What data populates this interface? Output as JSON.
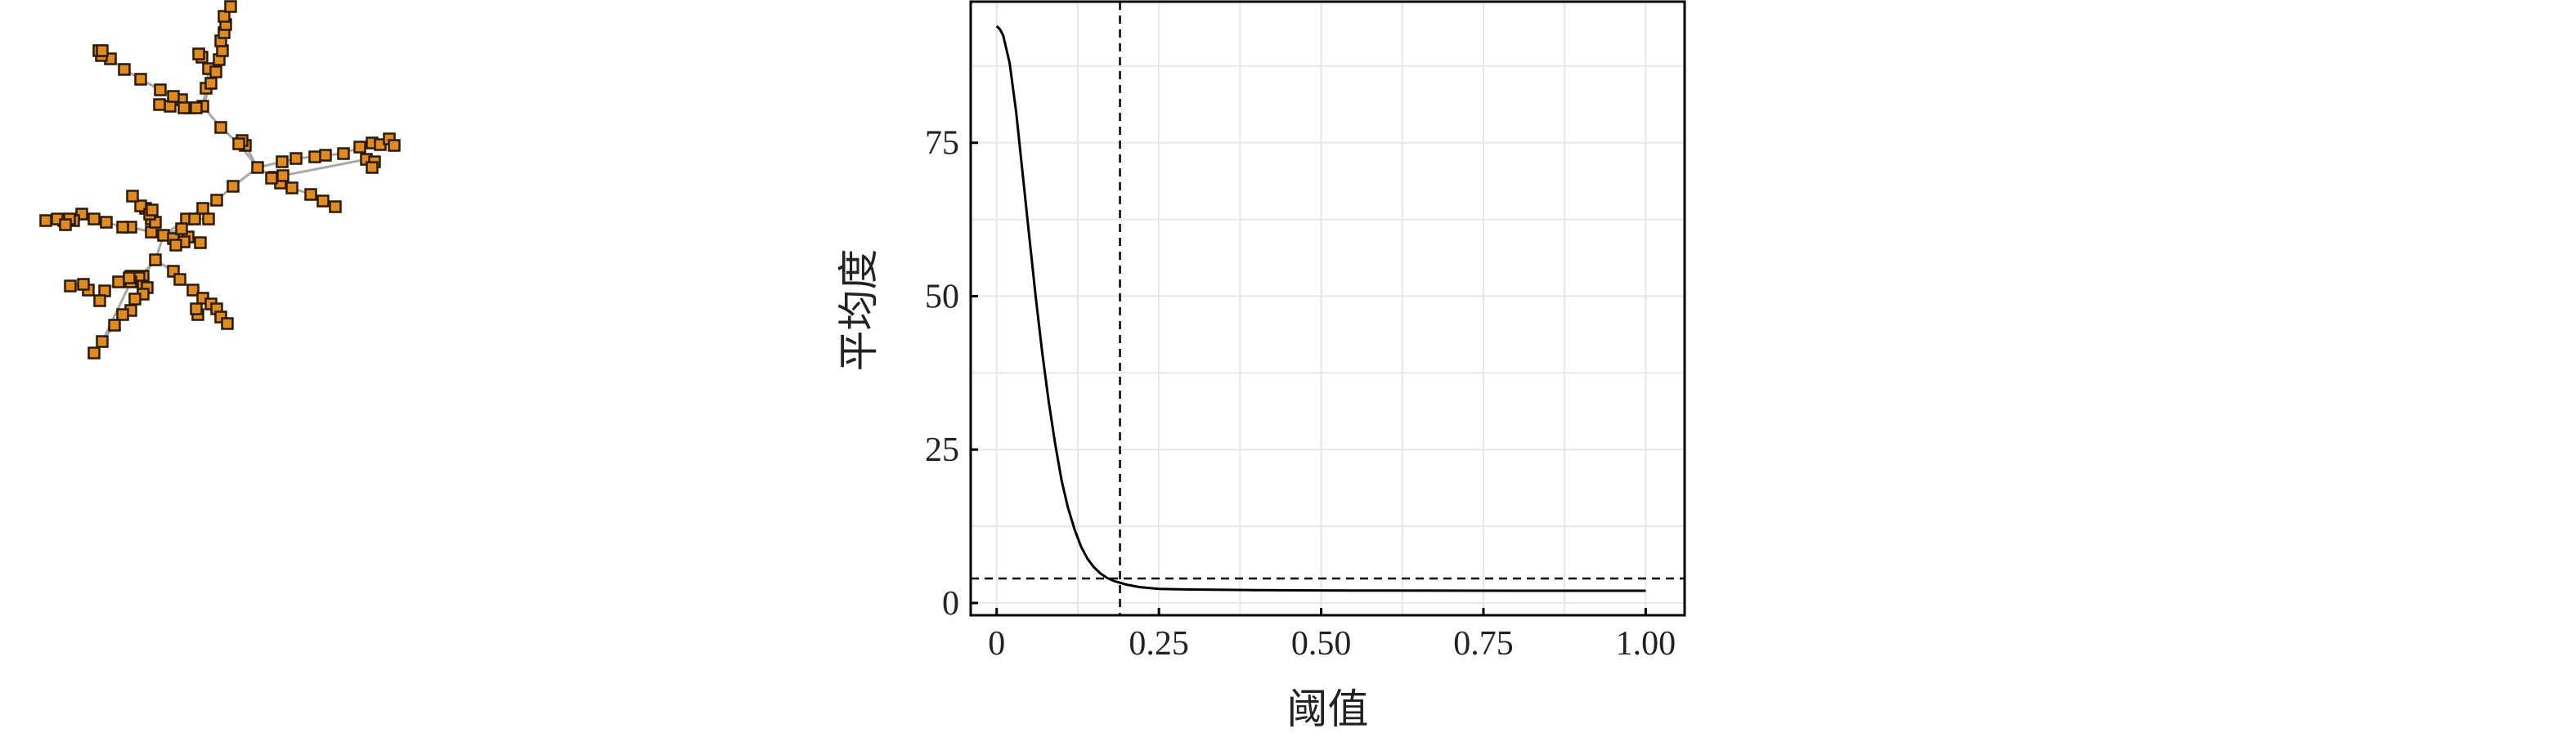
{
  "chart_data": [
    {
      "type": "network",
      "layout": "tree",
      "node_color": "#E08A22",
      "edge_color": "#A9A9A9"
    },
    {
      "type": "line",
      "xlabel": "阈值",
      "ylabel": "平均度",
      "xlim": [
        -0.04,
        1.06
      ],
      "ylim": [
        -2,
        98
      ],
      "xticks": [
        "0",
        "0.25",
        "0.50",
        "0.75",
        "1.00"
      ],
      "yticks": [
        "0",
        "25",
        "50",
        "75"
      ],
      "grid": true,
      "series": [
        {
          "x": [
            0.0,
            0.005,
            0.01,
            0.02,
            0.03,
            0.04,
            0.05,
            0.06,
            0.07,
            0.08,
            0.09,
            0.1,
            0.11,
            0.12,
            0.13,
            0.14,
            0.15,
            0.16,
            0.17,
            0.18,
            0.19,
            0.2,
            0.22,
            0.25,
            0.3,
            0.4,
            0.5,
            0.6,
            0.7,
            0.8,
            0.9,
            1.0
          ],
          "values": [
            94,
            93.5,
            92.5,
            88,
            80,
            70,
            60,
            50,
            41,
            33,
            26,
            20,
            15.5,
            12,
            9.2,
            7.2,
            5.8,
            4.8,
            4.1,
            3.6,
            3.3,
            3.0,
            2.6,
            2.3,
            2.2,
            2.1,
            2.05,
            2.02,
            2.01,
            2.0,
            2.0,
            2.0
          ]
        }
      ],
      "reference_lines": {
        "vertical_x": 0.19,
        "horizontal_y": 4.0
      }
    },
    {
      "type": "network",
      "layout": "force-directed",
      "node_color": "#E08A22",
      "edge_color": "#A9A9A9"
    }
  ]
}
